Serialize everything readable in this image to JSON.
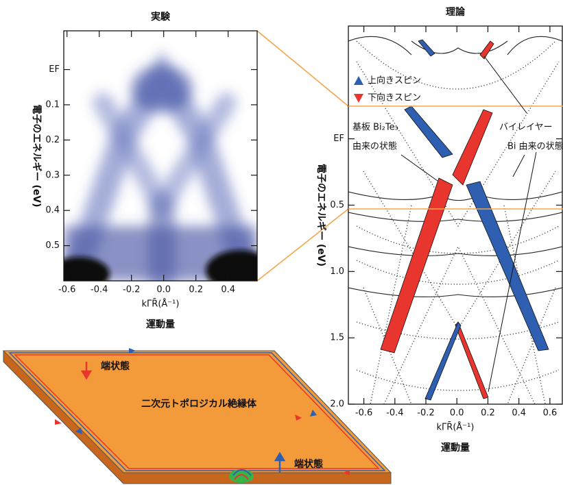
{
  "experiment": {
    "title": "実験",
    "y_label": "電子のエネルギー (eV)",
    "x_label": "kΓ̄R̄(Å⁻¹)",
    "x_caption": "運動量",
    "xlim": [
      -0.62,
      0.58
    ],
    "ylim": [
      -0.11,
      0.6
    ],
    "xticks": [
      -0.6,
      -0.4,
      -0.2,
      {
        "value": 0,
        "label": "0.0"
      },
      0.2,
      0.4
    ],
    "yticks": [
      {
        "value": 0,
        "label": "EF"
      },
      0.1,
      0.2,
      0.3,
      0.4,
      0.5
    ]
  },
  "theory": {
    "title": "理論",
    "y_label": "電子のエネルギー (eV)",
    "x_label": "kΓ̄R̄(Å⁻¹)",
    "x_caption": "運動量",
    "xlim": [
      -0.7,
      0.68
    ],
    "ylim": [
      -0.85,
      2.0
    ],
    "xticks": [
      -0.6,
      -0.4,
      -0.2,
      {
        "value": 0,
        "label": "0.0"
      },
      0.2,
      0.4,
      0.6
    ],
    "yticks": [
      {
        "value": 0,
        "label": "EF"
      },
      0.5,
      {
        "value": 1,
        "label": "1.0"
      },
      1.5,
      {
        "value": 2,
        "label": "2.0"
      }
    ],
    "legend": [
      {
        "name": "上向きスピン",
        "color": "#2f5fb0"
      },
      {
        "name": "下向きスピン",
        "color": "#e8362e"
      }
    ],
    "annotations": [
      "基板 Bi₂Te₃",
      "由来の状態",
      "バイレイヤー",
      "Bi 由来の状態"
    ]
  },
  "diagram": {
    "title": "二次元トポロジカル絶縁体",
    "labels": [
      "端状態",
      "端状態"
    ]
  }
}
